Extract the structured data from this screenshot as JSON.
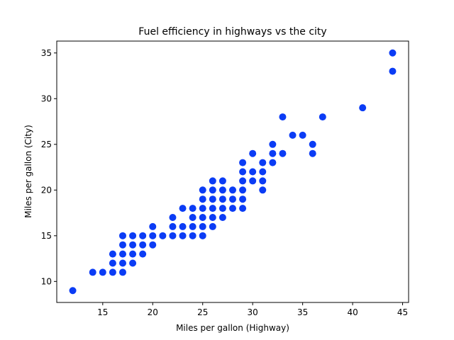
{
  "chart_data": {
    "type": "scatter",
    "title": "Fuel efficiency in highways vs the city",
    "xlabel": "Miles per gallon (Highway)",
    "ylabel": "Miles per gallon (City)",
    "xlim": [
      10.4,
      45.6
    ],
    "ylim": [
      7.7,
      36.3
    ],
    "xticks": [
      15,
      20,
      25,
      30,
      35,
      40,
      45
    ],
    "yticks": [
      10,
      15,
      20,
      25,
      30,
      35
    ],
    "grid": false,
    "marker_color": "#0b3cf5",
    "points": [
      [
        12,
        9
      ],
      [
        14,
        11
      ],
      [
        15,
        11
      ],
      [
        16,
        11
      ],
      [
        17,
        11
      ],
      [
        16,
        12
      ],
      [
        17,
        12
      ],
      [
        18,
        12
      ],
      [
        16,
        13
      ],
      [
        17,
        13
      ],
      [
        18,
        13
      ],
      [
        19,
        13
      ],
      [
        17,
        14
      ],
      [
        18,
        14
      ],
      [
        19,
        14
      ],
      [
        20,
        14
      ],
      [
        17,
        15
      ],
      [
        18,
        15
      ],
      [
        19,
        15
      ],
      [
        20,
        15
      ],
      [
        21,
        15
      ],
      [
        22,
        15
      ],
      [
        23,
        15
      ],
      [
        24,
        15
      ],
      [
        25,
        15
      ],
      [
        20,
        16
      ],
      [
        22,
        16
      ],
      [
        23,
        16
      ],
      [
        24,
        16
      ],
      [
        25,
        16
      ],
      [
        26,
        16
      ],
      [
        22,
        17
      ],
      [
        24,
        17
      ],
      [
        25,
        17
      ],
      [
        26,
        17
      ],
      [
        27,
        17
      ],
      [
        23,
        18
      ],
      [
        24,
        18
      ],
      [
        25,
        18
      ],
      [
        26,
        18
      ],
      [
        27,
        18
      ],
      [
        28,
        18
      ],
      [
        29,
        18
      ],
      [
        25,
        19
      ],
      [
        26,
        19
      ],
      [
        27,
        19
      ],
      [
        28,
        19
      ],
      [
        29,
        19
      ],
      [
        25,
        20
      ],
      [
        26,
        20
      ],
      [
        27,
        20
      ],
      [
        28,
        20
      ],
      [
        29,
        20
      ],
      [
        31,
        20
      ],
      [
        26,
        21
      ],
      [
        27,
        21
      ],
      [
        29,
        21
      ],
      [
        30,
        21
      ],
      [
        31,
        21
      ],
      [
        29,
        22
      ],
      [
        30,
        22
      ],
      [
        31,
        22
      ],
      [
        29,
        23
      ],
      [
        31,
        23
      ],
      [
        32,
        23
      ],
      [
        30,
        24
      ],
      [
        32,
        24
      ],
      [
        33,
        24
      ],
      [
        36,
        24
      ],
      [
        32,
        25
      ],
      [
        36,
        25
      ],
      [
        34,
        26
      ],
      [
        35,
        26
      ],
      [
        33,
        28
      ],
      [
        37,
        28
      ],
      [
        41,
        29
      ],
      [
        44,
        33
      ],
      [
        44,
        35
      ]
    ]
  }
}
